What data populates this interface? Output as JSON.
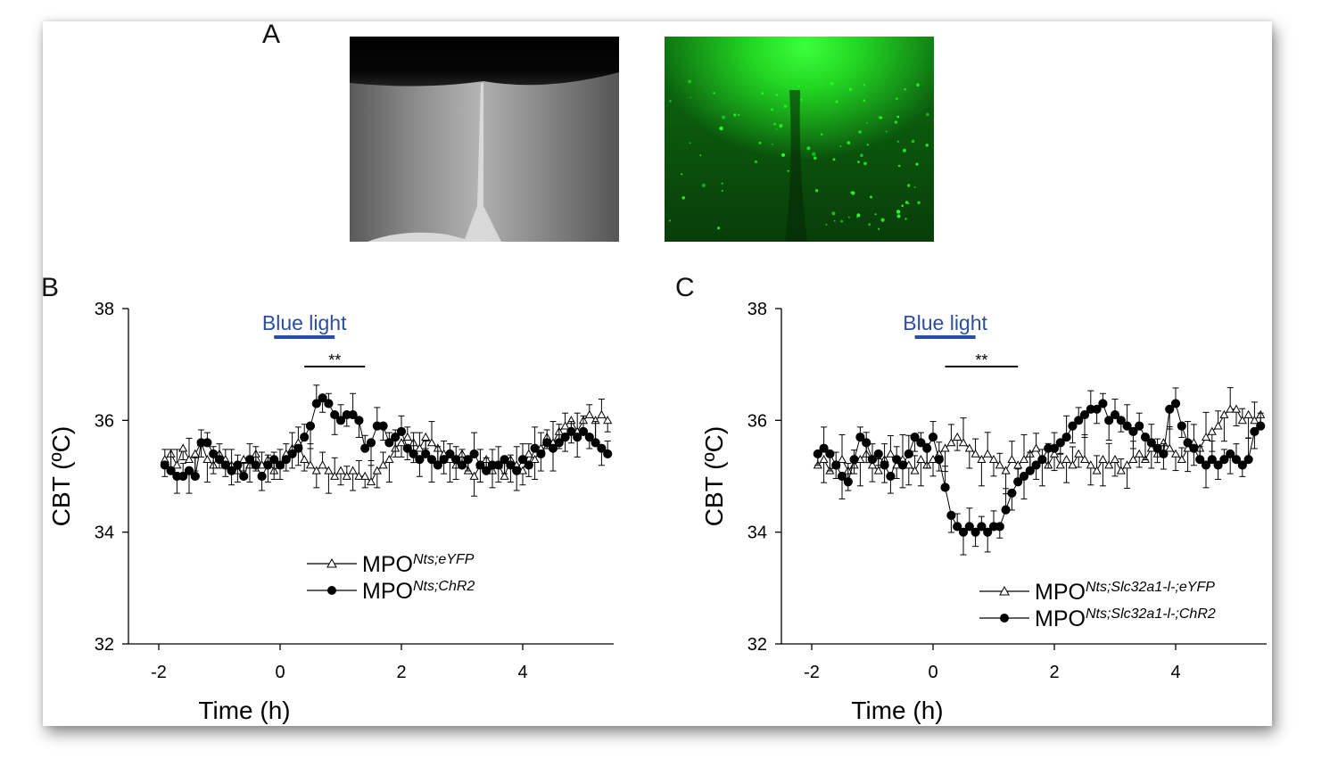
{
  "panels": {
    "a": "A",
    "b": "B",
    "c": "C"
  },
  "images": [
    {
      "name": "brightfield-micrograph",
      "colors": {
        "base": "#8a8a8a",
        "dark": "#050505"
      }
    },
    {
      "name": "fluorescence-micrograph",
      "colors": {
        "base": "#0f5a12",
        "bright": "#2cff2c"
      }
    }
  ],
  "colors": {
    "blue_light": "#2a4fa0",
    "series_open": "#ffffff",
    "series_filled": "#000000",
    "axis": "#000000"
  },
  "chart_data": [
    {
      "type": "line",
      "panel": "B",
      "xlabel": "Time (h)",
      "ylabel": "CBT (ºC)",
      "xlim": [
        -2.5,
        5.5
      ],
      "ylim": [
        32,
        38
      ],
      "xticks": [
        -2,
        0,
        2,
        4
      ],
      "xtick_labels": [
        "-2",
        "0",
        "2",
        "4"
      ],
      "yticks": [
        32,
        34,
        36,
        38
      ],
      "ytick_labels": [
        "32",
        "34",
        "36",
        "38"
      ],
      "grid": false,
      "legend": "bottom-center",
      "stim": {
        "label": "Blue light",
        "start": -0.1,
        "end": 0.9
      },
      "significance": {
        "label": "**",
        "start": 0.4,
        "end": 1.4
      },
      "series": [
        {
          "name_main": "MPO",
          "name_sup": "Nts;eYFP",
          "marker": "triangle-open",
          "x_start": -1.9,
          "x_step": 0.1,
          "y": [
            35.3,
            35.4,
            35.2,
            35.5,
            35.3,
            35.4,
            35.6,
            35.3,
            35.2,
            35.4,
            35.3,
            35.2,
            35.1,
            35.3,
            35.2,
            35.4,
            35.2,
            35.3,
            35.1,
            35.2,
            35.4,
            35.5,
            35.6,
            35.3,
            35.2,
            35.1,
            35.2,
            35.1,
            35.0,
            35.1,
            35.0,
            35.1,
            35.0,
            35.0,
            34.9,
            35.1,
            35.2,
            35.3,
            35.5,
            35.6,
            35.7,
            35.6,
            35.5,
            35.7,
            35.6,
            35.5,
            35.4,
            35.3,
            35.2,
            35.4,
            35.1,
            35.0,
            35.2,
            35.3,
            35.1,
            35.2,
            35.0,
            35.3,
            35.2,
            35.1,
            35.4,
            35.3,
            35.5,
            35.7,
            35.6,
            35.8,
            35.9,
            36.0,
            35.8,
            36.0,
            36.1,
            36.0,
            36.1,
            36.0
          ],
          "err": 0.3
        },
        {
          "name_main": "MPO",
          "name_sup": "Nts;ChR2",
          "marker": "circle-filled",
          "x_start": -1.9,
          "x_step": 0.1,
          "y": [
            35.2,
            35.1,
            35.0,
            35.0,
            35.1,
            35.0,
            35.6,
            35.6,
            35.4,
            35.3,
            35.2,
            35.1,
            35.2,
            35.0,
            35.3,
            35.2,
            35.0,
            35.2,
            35.3,
            35.2,
            35.3,
            35.4,
            35.5,
            35.7,
            35.9,
            36.3,
            36.4,
            36.3,
            36.1,
            36.0,
            36.1,
            36.1,
            36.0,
            35.5,
            35.6,
            35.9,
            35.9,
            35.6,
            35.7,
            35.8,
            35.5,
            35.4,
            35.3,
            35.4,
            35.3,
            35.2,
            35.3,
            35.4,
            35.3,
            35.2,
            35.3,
            35.4,
            35.2,
            35.1,
            35.2,
            35.2,
            35.3,
            35.2,
            35.1,
            35.3,
            35.2,
            35.5,
            35.4,
            35.6,
            35.5,
            35.6,
            35.7,
            35.8,
            35.7,
            35.8,
            35.7,
            35.6,
            35.5,
            35.4
          ],
          "err": 0.3
        }
      ]
    },
    {
      "type": "line",
      "panel": "C",
      "xlabel": "Time (h)",
      "ylabel": "CBT (ºC)",
      "xlim": [
        -2.5,
        5.5
      ],
      "ylim": [
        32,
        38
      ],
      "xticks": [
        -2,
        0,
        2,
        4
      ],
      "xtick_labels": [
        "-2",
        "0",
        "2",
        "4"
      ],
      "yticks": [
        32,
        34,
        36,
        38
      ],
      "ytick_labels": [
        "32",
        "34",
        "36",
        "38"
      ],
      "grid": false,
      "legend": "bottom-right",
      "stim": {
        "label": "Blue light",
        "start": -0.3,
        "end": 0.7
      },
      "significance": {
        "label": "**",
        "start": 0.2,
        "end": 1.4
      },
      "series": [
        {
          "name_main": "MPO",
          "name_sup": "Nts;Slc32a1-l-;eYFP",
          "marker": "triangle-open",
          "x_start": -1.9,
          "x_step": 0.1,
          "y": [
            35.2,
            35.3,
            35.1,
            35.2,
            35.3,
            35.1,
            35.2,
            35.3,
            35.4,
            35.2,
            35.1,
            35.3,
            35.4,
            35.2,
            35.3,
            35.2,
            35.1,
            35.3,
            35.2,
            35.3,
            35.4,
            35.5,
            35.6,
            35.7,
            35.6,
            35.5,
            35.4,
            35.3,
            35.4,
            35.3,
            35.2,
            35.1,
            35.3,
            35.2,
            35.3,
            35.4,
            35.5,
            35.3,
            35.2,
            35.4,
            35.2,
            35.3,
            35.2,
            35.4,
            35.3,
            35.2,
            35.1,
            35.3,
            35.2,
            35.3,
            35.1,
            35.2,
            35.3,
            35.4,
            35.3,
            35.5,
            35.4,
            35.6,
            35.5,
            35.4,
            35.3,
            35.5,
            35.6,
            35.5,
            35.7,
            35.8,
            35.9,
            36.1,
            36.2,
            36.2,
            36.0,
            36.1,
            36.0,
            36.1
          ],
          "err": 0.35
        },
        {
          "name_main": "MPO",
          "name_sup": "Nts;Slc32a1-l-;ChR2",
          "marker": "circle-filled",
          "x_start": -1.9,
          "x_step": 0.1,
          "y": [
            35.4,
            35.5,
            35.4,
            35.2,
            35.0,
            34.9,
            35.3,
            35.7,
            35.6,
            35.3,
            35.4,
            35.2,
            35.0,
            35.3,
            35.2,
            35.4,
            35.7,
            35.6,
            35.5,
            35.7,
            35.3,
            34.8,
            34.3,
            34.1,
            34.0,
            34.1,
            34.0,
            34.1,
            34.0,
            34.1,
            34.1,
            34.4,
            34.7,
            34.9,
            35.0,
            35.1,
            35.2,
            35.3,
            35.5,
            35.5,
            35.6,
            35.7,
            35.9,
            36.0,
            36.1,
            36.2,
            36.2,
            36.3,
            36.0,
            36.1,
            36.0,
            35.9,
            35.8,
            35.9,
            35.7,
            35.6,
            35.5,
            35.4,
            36.2,
            36.3,
            35.9,
            35.6,
            35.5,
            35.3,
            35.2,
            35.3,
            35.2,
            35.3,
            35.4,
            35.3,
            35.2,
            35.3,
            35.8,
            35.9
          ],
          "err": 0.3
        }
      ]
    }
  ]
}
